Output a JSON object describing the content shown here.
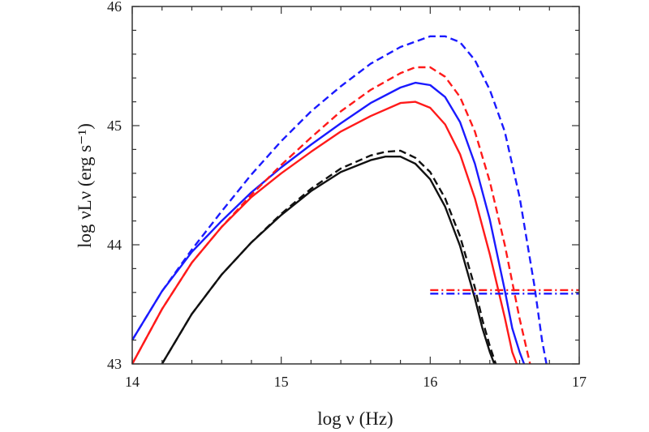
{
  "chart_data": {
    "type": "line",
    "title": "",
    "xlabel": "log ν (Hz)",
    "ylabel": "log νLν (erg s⁻¹)",
    "xlim": [
      14,
      17
    ],
    "ylim": [
      43,
      46
    ],
    "x_ticks": [
      "14",
      "15",
      "16",
      "17"
    ],
    "y_ticks": [
      "43",
      "44",
      "45",
      "46"
    ],
    "grid": false,
    "legend": "none",
    "series": [
      {
        "color": "#1a1aff",
        "style": "solid",
        "x": [
          14.0,
          14.2,
          14.4,
          14.6,
          14.8,
          15.0,
          15.2,
          15.4,
          15.6,
          15.8,
          15.9,
          16.0,
          16.1,
          16.2,
          16.3,
          16.4,
          16.5,
          16.55,
          16.6,
          16.63
        ],
        "y": [
          43.2,
          43.61,
          43.94,
          44.2,
          44.44,
          44.65,
          44.84,
          45.02,
          45.19,
          45.32,
          45.36,
          45.34,
          45.24,
          45.03,
          44.68,
          44.21,
          43.62,
          43.3,
          43.1,
          43.0
        ]
      },
      {
        "color": "#1a1aff",
        "style": "dashed",
        "x": [
          14.0,
          14.2,
          14.4,
          14.6,
          14.8,
          15.0,
          15.2,
          15.4,
          15.6,
          15.8,
          16.0,
          16.1,
          16.2,
          16.3,
          16.4,
          16.5,
          16.6,
          16.7,
          16.75,
          16.78
        ],
        "y": [
          43.2,
          43.61,
          43.96,
          44.28,
          44.59,
          44.87,
          45.12,
          45.33,
          45.52,
          45.66,
          45.75,
          45.75,
          45.7,
          45.55,
          45.3,
          44.95,
          44.4,
          43.65,
          43.2,
          43.0
        ]
      },
      {
        "color": "#ff1a1a",
        "style": "solid",
        "x": [
          14.0,
          14.2,
          14.4,
          14.6,
          14.8,
          15.0,
          15.2,
          15.4,
          15.6,
          15.8,
          15.9,
          16.0,
          16.1,
          16.2,
          16.3,
          16.4,
          16.5,
          16.55,
          16.58
        ],
        "y": [
          43.0,
          43.46,
          43.85,
          44.15,
          44.4,
          44.6,
          44.78,
          44.95,
          45.08,
          45.19,
          45.2,
          45.15,
          45.01,
          44.76,
          44.39,
          43.92,
          43.39,
          43.1,
          43.0
        ]
      },
      {
        "color": "#ff1a1a",
        "style": "dashed",
        "x": [
          14.0,
          14.2,
          14.4,
          14.6,
          14.8,
          15.0,
          15.2,
          15.4,
          15.6,
          15.8,
          15.9,
          16.0,
          16.1,
          16.2,
          16.3,
          16.4,
          16.5,
          16.6,
          16.67
        ],
        "y": [
          43.0,
          43.46,
          43.85,
          44.15,
          44.42,
          44.67,
          44.9,
          45.12,
          45.3,
          45.44,
          45.49,
          45.49,
          45.41,
          45.24,
          44.95,
          44.53,
          44.0,
          43.38,
          43.0
        ]
      },
      {
        "color": "#111111",
        "style": "solid",
        "x": [
          14.2,
          14.4,
          14.6,
          14.8,
          15.0,
          15.2,
          15.4,
          15.6,
          15.7,
          15.8,
          15.9,
          16.0,
          16.1,
          16.2,
          16.3,
          16.35,
          16.4,
          16.43
        ],
        "y": [
          43.0,
          43.42,
          43.75,
          44.02,
          44.25,
          44.45,
          44.61,
          44.71,
          44.74,
          44.74,
          44.68,
          44.55,
          44.32,
          43.99,
          43.55,
          43.3,
          43.1,
          43.0
        ]
      },
      {
        "color": "#111111",
        "style": "dashed",
        "x": [
          14.2,
          14.4,
          14.6,
          14.8,
          15.0,
          15.2,
          15.4,
          15.6,
          15.7,
          15.8,
          15.9,
          16.0,
          16.1,
          16.2,
          16.3,
          16.35,
          16.4,
          16.44
        ],
        "y": [
          43.0,
          43.42,
          43.75,
          44.02,
          44.26,
          44.47,
          44.64,
          44.75,
          44.78,
          44.79,
          44.73,
          44.61,
          44.39,
          44.07,
          43.64,
          43.37,
          43.15,
          43.0
        ]
      },
      {
        "color": "#ff1a1a",
        "style": "dashdot",
        "x": [
          16.0,
          17.0
        ],
        "y": [
          43.62,
          43.62
        ]
      },
      {
        "color": "#1a1aff",
        "style": "dashdot",
        "x": [
          16.0,
          17.0
        ],
        "y": [
          43.59,
          43.59
        ]
      }
    ]
  }
}
